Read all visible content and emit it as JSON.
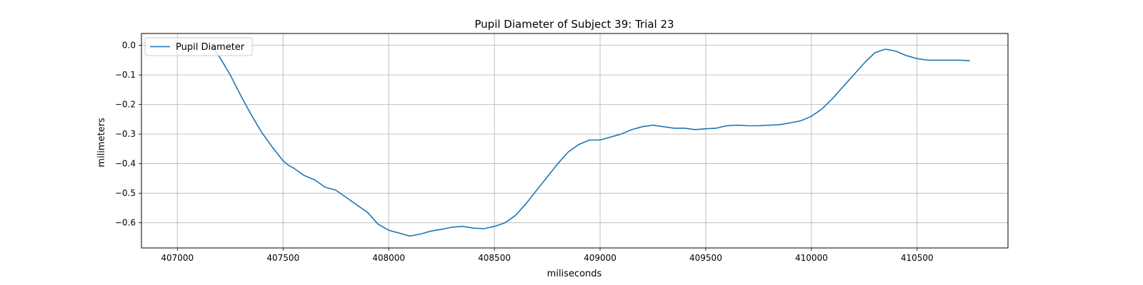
{
  "chart_data": {
    "type": "line",
    "title": "Pupil Diameter of Subject 39: Trial 23",
    "xlabel": "miliseconds",
    "ylabel": "milimeters",
    "xlim": [
      406830,
      410930
    ],
    "ylim": [
      -0.685,
      0.04
    ],
    "xticks": [
      407000,
      407500,
      408000,
      408500,
      409000,
      409500,
      410000,
      410500
    ],
    "yticks": [
      0.0,
      -0.1,
      -0.2,
      -0.3,
      -0.4,
      -0.5,
      -0.6
    ],
    "ytick_labels": [
      "0.0",
      "−0.1",
      "−0.2",
      "−0.3",
      "−0.4",
      "−0.5",
      "−0.6"
    ],
    "grid": true,
    "legend": "upper left",
    "series": [
      {
        "name": "Pupil Diameter",
        "color": "#1f77b4",
        "x": [
          407160,
          407200,
          407250,
          407300,
          407350,
          407400,
          407450,
          407500,
          407525,
          407550,
          407600,
          407650,
          407700,
          407750,
          407800,
          407850,
          407900,
          407950,
          408000,
          408050,
          408100,
          408150,
          408200,
          408250,
          408300,
          408350,
          408400,
          408450,
          408500,
          408550,
          408600,
          408650,
          408700,
          408750,
          408800,
          408850,
          408900,
          408950,
          409000,
          409050,
          409100,
          409150,
          409200,
          409250,
          409300,
          409350,
          409400,
          409450,
          409500,
          409550,
          409600,
          409650,
          409700,
          409750,
          409800,
          409850,
          409900,
          409950,
          410000,
          410050,
          410100,
          410150,
          410200,
          410250,
          410300,
          410350,
          410400,
          410450,
          410500,
          410550,
          410600,
          410650,
          410700,
          410750
        ],
        "y": [
          0.0,
          -0.04,
          -0.1,
          -0.17,
          -0.235,
          -0.295,
          -0.345,
          -0.39,
          -0.405,
          -0.415,
          -0.44,
          -0.455,
          -0.48,
          -0.49,
          -0.515,
          -0.54,
          -0.565,
          -0.605,
          -0.625,
          -0.635,
          -0.645,
          -0.638,
          -0.628,
          -0.622,
          -0.615,
          -0.612,
          -0.618,
          -0.62,
          -0.612,
          -0.6,
          -0.575,
          -0.535,
          -0.49,
          -0.445,
          -0.4,
          -0.36,
          -0.335,
          -0.32,
          -0.32,
          -0.31,
          -0.3,
          -0.285,
          -0.275,
          -0.27,
          -0.275,
          -0.28,
          -0.28,
          -0.285,
          -0.282,
          -0.28,
          -0.272,
          -0.27,
          -0.272,
          -0.272,
          -0.27,
          -0.268,
          -0.262,
          -0.255,
          -0.24,
          -0.215,
          -0.18,
          -0.14,
          -0.1,
          -0.06,
          -0.025,
          -0.013,
          -0.02,
          -0.035,
          -0.045,
          -0.05,
          -0.05,
          -0.05,
          -0.05,
          -0.052
        ]
      }
    ]
  }
}
